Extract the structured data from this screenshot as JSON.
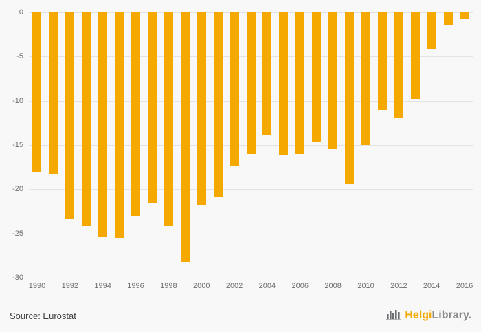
{
  "chart_data": {
    "type": "bar",
    "categories": [
      1990,
      1991,
      1992,
      1993,
      1994,
      1995,
      1996,
      1997,
      1998,
      1999,
      2000,
      2001,
      2002,
      2003,
      2004,
      2005,
      2006,
      2007,
      2008,
      2009,
      2010,
      2011,
      2012,
      2013,
      2014,
      2015,
      2016
    ],
    "values": [
      -18.0,
      -18.3,
      -23.3,
      -24.2,
      -25.4,
      -25.5,
      -23.0,
      -21.5,
      -24.2,
      -28.2,
      -21.8,
      -20.9,
      -17.3,
      -16.0,
      -13.8,
      -16.1,
      -16.0,
      -14.6,
      -15.5,
      -19.4,
      -15.0,
      -11.0,
      -11.9,
      -9.8,
      -4.2,
      -1.5,
      -0.8
    ],
    "title": "",
    "xlabel": "",
    "ylabel": "",
    "ylim": [
      -30,
      0
    ],
    "yticks": [
      0,
      -5,
      -10,
      -15,
      -20,
      -25,
      -30
    ],
    "xtick_step": 2,
    "bar_color": "#f5a800",
    "grid": true,
    "legend": "none"
  },
  "footer": {
    "source": "Source: Eurostat",
    "logo": {
      "primary": "Helgi",
      "secondary": "Library."
    }
  }
}
